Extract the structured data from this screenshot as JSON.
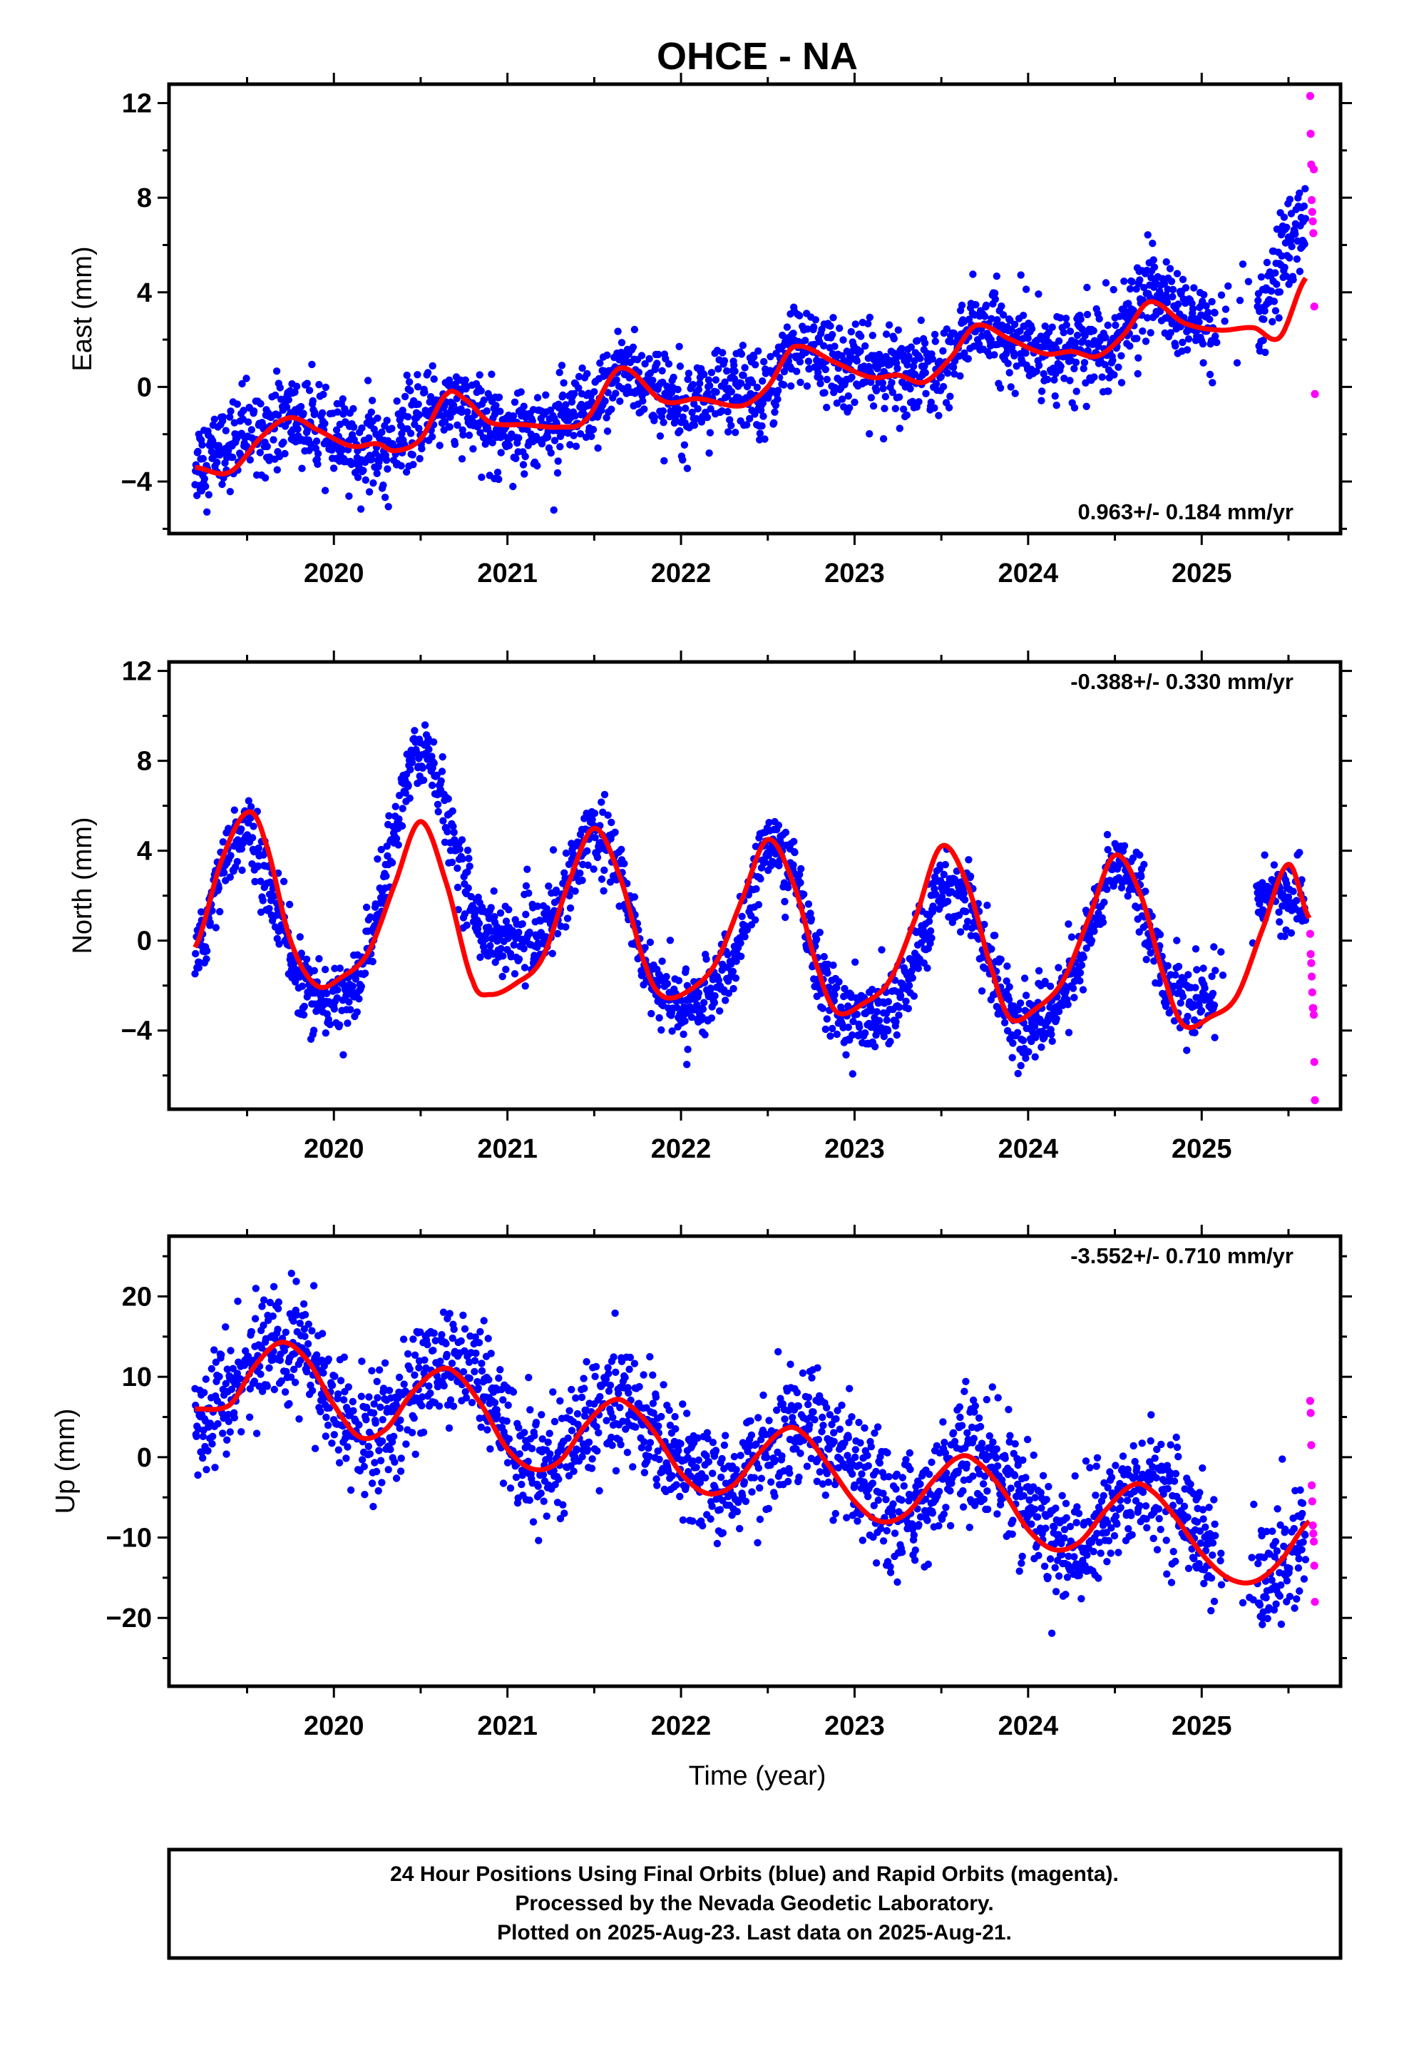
{
  "title": "OHCE - NA",
  "xlabel": "Time (year)",
  "colors": {
    "final": "#0000ff",
    "rapid": "#ff00ff",
    "model": "#ff0000",
    "frame": "#000000"
  },
  "footer": {
    "line1": "24 Hour Positions Using Final Orbits (blue) and Rapid Orbits (magenta).",
    "line2": "Processed by the Nevada Geodetic Laboratory.",
    "line3": "Plotted on 2025-Aug-23. Last data on 2025-Aug-21."
  },
  "chart_data": [
    {
      "type": "scatter",
      "ylabel": "East (mm)",
      "rate_label": "0.963+/- 0.184 mm/yr",
      "rate_position": "bottom-right",
      "xlim": [
        2019.05,
        2025.8
      ],
      "ylim": [
        -6.2,
        12.8
      ],
      "yticks": [
        -4,
        0,
        4,
        8,
        12
      ],
      "xticks": [
        2020,
        2021,
        2022,
        2023,
        2024,
        2025
      ],
      "model": {
        "x": [
          2019.2,
          2019.4,
          2019.6,
          2019.75,
          2019.9,
          2020.1,
          2020.25,
          2020.35,
          2020.5,
          2020.65,
          2020.75,
          2020.9,
          2021.1,
          2021.3,
          2021.45,
          2021.65,
          2021.9,
          2022.1,
          2022.35,
          2022.5,
          2022.65,
          2022.9,
          2023.1,
          2023.25,
          2023.4,
          2023.55,
          2023.7,
          2023.9,
          2024.1,
          2024.25,
          2024.4,
          2024.55,
          2024.7,
          2024.9,
          2025.1,
          2025.3,
          2025.45,
          2025.6
        ],
        "y": [
          -3.4,
          -3.6,
          -2.0,
          -1.3,
          -1.8,
          -2.5,
          -2.4,
          -2.7,
          -2.2,
          -0.3,
          -0.5,
          -1.5,
          -1.6,
          -1.7,
          -1.4,
          0.8,
          -0.6,
          -0.5,
          -0.8,
          0.0,
          1.7,
          1.0,
          0.4,
          0.5,
          0.2,
          1.2,
          2.6,
          2.0,
          1.4,
          1.5,
          1.3,
          2.2,
          3.6,
          2.7,
          2.4,
          2.5,
          2.1,
          4.6
        ]
      },
      "final_trend": {
        "x": [
          2019.2,
          2019.5,
          2019.75,
          2020.0,
          2020.3,
          2020.6,
          2020.9,
          2021.2,
          2021.5,
          2021.65,
          2021.9,
          2022.2,
          2022.5,
          2022.65,
          2022.9,
          2023.2,
          2023.5,
          2023.7,
          2023.9,
          2024.2,
          2024.5,
          2024.7,
          2024.9,
          2025.1,
          2025.35,
          2025.5,
          2025.6
        ],
        "y": [
          -3.2,
          -2.0,
          -1.2,
          -2.3,
          -2.8,
          -0.6,
          -1.6,
          -1.7,
          -1.2,
          1.0,
          -0.5,
          -0.3,
          -0.2,
          1.9,
          0.9,
          0.6,
          0.6,
          2.8,
          1.8,
          1.4,
          1.8,
          4.2,
          2.8,
          2.4,
          2.8,
          6.0,
          7.2
        ]
      },
      "final_noise_mm": 0.9,
      "rapid_points": {
        "x": [
          2025.625,
          2025.628,
          2025.631,
          2025.634,
          2025.637,
          2025.64,
          2025.643,
          2025.646,
          2025.649,
          2025.652
        ],
        "y": [
          12.3,
          10.7,
          9.4,
          7.9,
          7.4,
          7.0,
          6.5,
          9.2,
          3.4,
          -0.3
        ]
      }
    },
    {
      "type": "scatter",
      "ylabel": "North (mm)",
      "rate_label": "-0.388+/- 0.330 mm/yr",
      "rate_position": "top-right",
      "xlim": [
        2019.05,
        2025.8
      ],
      "ylim": [
        -7.5,
        12.4
      ],
      "yticks": [
        -4,
        0,
        4,
        8,
        12
      ],
      "xticks": [
        2020,
        2021,
        2022,
        2023,
        2024,
        2025
      ],
      "model": {
        "x": [
          2019.2,
          2019.35,
          2019.5,
          2019.6,
          2019.75,
          2019.9,
          2020.05,
          2020.2,
          2020.35,
          2020.5,
          2020.65,
          2020.8,
          2020.9,
          2021.05,
          2021.2,
          2021.35,
          2021.5,
          2021.65,
          2021.8,
          2021.9,
          2022.05,
          2022.2,
          2022.35,
          2022.5,
          2022.65,
          2022.8,
          2022.9,
          2023.05,
          2023.2,
          2023.35,
          2023.5,
          2023.65,
          2023.8,
          2023.9,
          2024.05,
          2024.2,
          2024.35,
          2024.5,
          2024.65,
          2024.8,
          2024.9,
          2025.05,
          2025.2,
          2025.35,
          2025.5,
          2025.62
        ],
        "y": [
          -0.3,
          3.5,
          5.7,
          4.5,
          0.0,
          -2.0,
          -1.6,
          -0.5,
          2.5,
          5.3,
          2.5,
          -1.8,
          -2.4,
          -1.9,
          -0.8,
          2.5,
          5.0,
          2.8,
          -1.2,
          -2.5,
          -2.2,
          -1.0,
          1.8,
          4.5,
          2.5,
          -1.5,
          -3.2,
          -2.8,
          -1.8,
          1.0,
          4.2,
          2.5,
          -1.5,
          -3.5,
          -3.0,
          -1.8,
          1.0,
          3.8,
          2.0,
          -2.0,
          -3.8,
          -3.4,
          -2.5,
          0.5,
          3.4,
          1.0
        ]
      },
      "final_trend": {
        "x": [
          2019.2,
          2019.35,
          2019.5,
          2019.65,
          2019.8,
          2019.95,
          2020.15,
          2020.3,
          2020.45,
          2020.55,
          2020.7,
          2020.85,
          2021.0,
          2021.2,
          2021.35,
          2021.5,
          2021.65,
          2021.8,
          2021.95,
          2022.15,
          2022.3,
          2022.5,
          2022.65,
          2022.8,
          2022.95,
          2023.15,
          2023.3,
          2023.5,
          2023.65,
          2023.8,
          2023.95,
          2024.15,
          2024.3,
          2024.5,
          2024.65,
          2024.8,
          2024.95,
          2025.05,
          2025.35,
          2025.5,
          2025.6
        ],
        "y": [
          -1.5,
          3.5,
          5.0,
          2.0,
          -1.8,
          -3.0,
          -1.8,
          3.0,
          8.0,
          8.5,
          4.0,
          0.5,
          0.0,
          0.2,
          2.5,
          5.5,
          3.0,
          -1.2,
          -3.0,
          -2.5,
          -1.0,
          4.5,
          3.0,
          -1.5,
          -3.5,
          -3.5,
          -2.0,
          2.5,
          2.0,
          -1.5,
          -4.0,
          -3.0,
          -1.0,
          4.0,
          2.0,
          -2.0,
          -3.0,
          -2.5,
          2.5,
          2.0,
          1.5
        ]
      },
      "final_noise_mm": 0.8,
      "rapid_points": {
        "x": [
          2025.625,
          2025.628,
          2025.631,
          2025.634,
          2025.637,
          2025.64,
          2025.643,
          2025.646,
          2025.649,
          2025.652
        ],
        "y": [
          0.3,
          -0.6,
          -1.0,
          -1.6,
          -2.3,
          -3.0,
          -3.0,
          -3.3,
          -5.4,
          -7.1
        ]
      }
    },
    {
      "type": "scatter",
      "ylabel": "Up (mm)",
      "rate_label": "-3.552+/- 0.710 mm/yr",
      "rate_position": "top-right",
      "xlim": [
        2019.05,
        2025.8
      ],
      "ylim": [
        -28.5,
        27.5
      ],
      "yticks": [
        -20,
        -10,
        0,
        10,
        20
      ],
      "xticks": [
        2020,
        2021,
        2022,
        2023,
        2024,
        2025
      ],
      "model": {
        "x": [
          2019.2,
          2019.4,
          2019.55,
          2019.7,
          2019.85,
          2020.0,
          2020.15,
          2020.3,
          2020.45,
          2020.6,
          2020.7,
          2020.85,
          2021.0,
          2021.15,
          2021.3,
          2021.45,
          2021.6,
          2021.7,
          2021.85,
          2022.0,
          2022.15,
          2022.3,
          2022.45,
          2022.6,
          2022.7,
          2022.85,
          2023.0,
          2023.15,
          2023.3,
          2023.45,
          2023.6,
          2023.7,
          2023.85,
          2024.0,
          2024.15,
          2024.3,
          2024.45,
          2024.6,
          2024.7,
          2024.85,
          2025.0,
          2025.15,
          2025.3,
          2025.45,
          2025.62
        ],
        "y": [
          6.0,
          6.5,
          11.5,
          14.3,
          12.0,
          6.5,
          2.5,
          3.5,
          8.0,
          10.8,
          10.5,
          6.5,
          1.0,
          -1.5,
          -0.5,
          4.0,
          7.0,
          6.5,
          3.0,
          -2.0,
          -4.5,
          -3.5,
          0.5,
          3.5,
          3.0,
          -1.0,
          -5.5,
          -8.0,
          -7.0,
          -3.0,
          0.0,
          -0.5,
          -4.0,
          -9.0,
          -11.5,
          -10.5,
          -6.5,
          -3.5,
          -4.0,
          -7.5,
          -12.0,
          -15.0,
          -15.5,
          -13.0,
          -8.0
        ]
      },
      "final_trend": {
        "x": [
          2019.2,
          2019.4,
          2019.55,
          2019.7,
          2019.85,
          2020.0,
          2020.15,
          2020.3,
          2020.45,
          2020.6,
          2020.75,
          2020.9,
          2021.05,
          2021.2,
          2021.35,
          2021.5,
          2021.65,
          2021.8,
          2022.0,
          2022.2,
          2022.35,
          2022.5,
          2022.7,
          2022.9,
          2023.1,
          2023.25,
          2023.45,
          2023.65,
          2023.85,
          2024.05,
          2024.25,
          2024.45,
          2024.65,
          2024.85,
          2025.0,
          2025.25,
          2025.4,
          2025.5,
          2025.6
        ],
        "y": [
          4.0,
          8.0,
          12.0,
          15.0,
          13.0,
          6.0,
          2.0,
          3.0,
          8.0,
          12.0,
          11.5,
          7.0,
          1.0,
          -1.5,
          1.0,
          5.0,
          8.0,
          5.0,
          -1.0,
          -4.0,
          -2.0,
          1.0,
          5.0,
          0.0,
          -5.0,
          -8.0,
          -4.0,
          1.0,
          -2.0,
          -8.0,
          -12.0,
          -8.0,
          -3.0,
          -5.0,
          -10.0,
          -17.0,
          -15.0,
          -12.0,
          -10.0
        ]
      },
      "final_noise_mm": 3.6,
      "rapid_points": {
        "x": [
          2025.625,
          2025.628,
          2025.631,
          2025.634,
          2025.637,
          2025.64,
          2025.643,
          2025.646,
          2025.649,
          2025.652
        ],
        "y": [
          7.0,
          5.5,
          1.5,
          -3.5,
          -5.5,
          -8.5,
          -9.5,
          -10.5,
          -13.5,
          -18.0
        ]
      }
    }
  ]
}
